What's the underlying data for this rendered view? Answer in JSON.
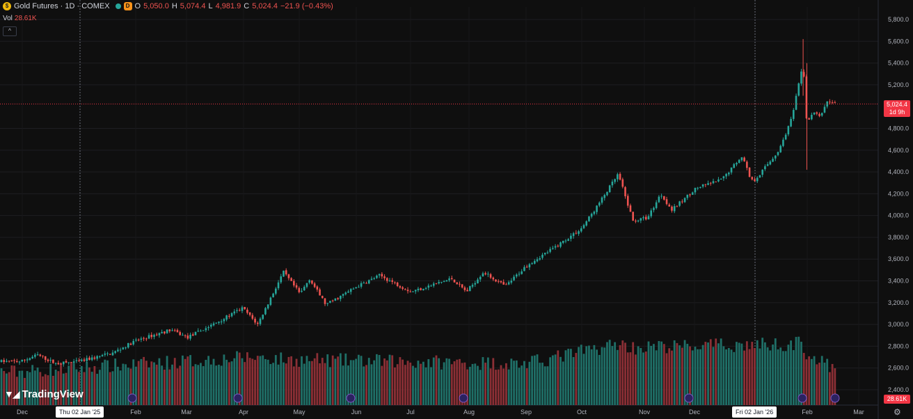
{
  "legend": {
    "symbol": "Gold Futures · 1D · COMEX",
    "badge": "D",
    "o_label": "O",
    "o_value": "5,050.0",
    "h_label": "H",
    "h_value": "5,074.4",
    "l_label": "L",
    "l_value": "4,981.9",
    "c_label": "C",
    "c_value": "5,024.4",
    "change": "−21.9 (−0.43%)"
  },
  "volume": {
    "label": "Vol",
    "value": "28.61K"
  },
  "collapse_label": "^",
  "logo_text": "TradingView",
  "last_price": {
    "price": "5,024.4",
    "countdown": "1d 9h"
  },
  "crosshair_dates": [
    "Thu 02 Jan '25",
    "Fri 02 Jan '26"
  ],
  "colors": {
    "up": "#26a69a",
    "down": "#ef5350",
    "background": "#0f0f0f",
    "grid": "#1e1e22",
    "last_price_line": "#f23645"
  },
  "chart_data": {
    "type": "candlestick",
    "title": "Gold Futures · 1D · COMEX",
    "y_ticks": [
      "5,800.0",
      "5,600.0",
      "5,400.0",
      "5,200.0",
      "4,800.0",
      "4,600.0",
      "4,400.0",
      "4,200.0",
      "4,000.0",
      "3,800.0",
      "3,600.0",
      "3,400.0",
      "3,200.0",
      "3,000.0",
      "2,800.0",
      "2,600.0",
      "2,400.0"
    ],
    "x_ticks": [
      "Dec",
      "Feb",
      "Mar",
      "Apr",
      "May",
      "Jun",
      "Jul",
      "Aug",
      "Sep",
      "Oct",
      "Nov",
      "Dec",
      "Feb",
      "Mar"
    ],
    "ylim": [
      2300,
      5900
    ],
    "price_path": [
      [
        "2024-12-01",
        2660
      ],
      [
        "2024-12-10",
        2720
      ],
      [
        "2024-12-20",
        2640
      ],
      [
        "2025-01-02",
        2660
      ],
      [
        "2025-01-20",
        2740
      ],
      [
        "2025-02-01",
        2850
      ],
      [
        "2025-02-20",
        2950
      ],
      [
        "2025-03-01",
        2880
      ],
      [
        "2025-03-15",
        3000
      ],
      [
        "2025-03-31",
        3150
      ],
      [
        "2025-04-08",
        3000
      ],
      [
        "2025-04-22",
        3480
      ],
      [
        "2025-05-01",
        3280
      ],
      [
        "2025-05-06",
        3420
      ],
      [
        "2025-05-15",
        3180
      ],
      [
        "2025-06-01",
        3350
      ],
      [
        "2025-06-13",
        3450
      ],
      [
        "2025-06-30",
        3300
      ],
      [
        "2025-07-22",
        3420
      ],
      [
        "2025-07-30",
        3300
      ],
      [
        "2025-08-08",
        3480
      ],
      [
        "2025-08-20",
        3350
      ],
      [
        "2025-09-01",
        3550
      ],
      [
        "2025-09-15",
        3700
      ],
      [
        "2025-09-30",
        3880
      ],
      [
        "2025-10-08",
        4070
      ],
      [
        "2025-10-20",
        4380
      ],
      [
        "2025-10-28",
        3950
      ],
      [
        "2025-11-05",
        3980
      ],
      [
        "2025-11-12",
        4200
      ],
      [
        "2025-11-18",
        4050
      ],
      [
        "2025-12-01",
        4250
      ],
      [
        "2025-12-15",
        4330
      ],
      [
        "2025-12-26",
        4550
      ],
      [
        "2025-12-31",
        4320
      ],
      [
        "2026-01-02",
        4330
      ],
      [
        "2026-01-15",
        4600
      ],
      [
        "2026-01-22",
        4900
      ],
      [
        "2026-01-28",
        5400
      ],
      [
        "2026-01-30",
        4850
      ],
      [
        "2026-02-03",
        4950
      ],
      [
        "2026-02-06",
        4900
      ],
      [
        "2026-02-10",
        5050
      ],
      [
        "2026-02-17",
        5024
      ]
    ],
    "volume_peaks": [
      [
        "2024-12-01",
        0.25
      ],
      [
        "2025-04-08",
        0.62
      ],
      [
        "2025-04-22",
        0.55
      ],
      [
        "2025-09-01",
        0.45
      ],
      [
        "2025-10-20",
        0.95
      ],
      [
        "2025-10-28",
        0.85
      ],
      [
        "2026-01-28",
        0.95
      ],
      [
        "2026-01-30",
        0.7
      ],
      [
        "2026-02-17",
        0.2
      ]
    ]
  }
}
